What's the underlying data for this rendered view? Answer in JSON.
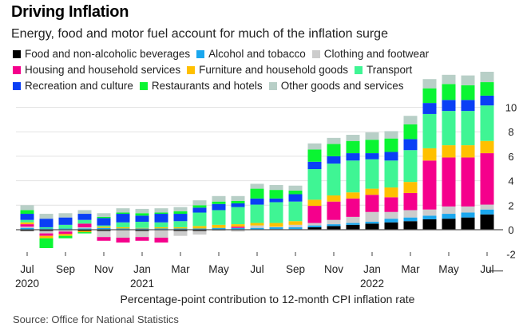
{
  "chart_data": {
    "type": "bar",
    "stacked": true,
    "title": "Driving Inflation",
    "subtitle": "Energy, food and motor fuel account for much of the inflation surge",
    "xlabel": "Percentage-point contribution to 12-month CPI inflation rate",
    "ylabel": "",
    "ylim": [
      -2,
      10
    ],
    "yticks": [
      -2,
      0,
      2,
      4,
      6,
      8,
      10
    ],
    "grid": true,
    "legend_position": "top-left",
    "source": "Source: Office for National Statistics",
    "categories": [
      "Jul 2020",
      "Aug 2020",
      "Sep 2020",
      "Oct 2020",
      "Nov 2020",
      "Dec 2020",
      "Jan 2021",
      "Feb 2021",
      "Mar 2021",
      "Apr 2021",
      "May 2021",
      "Jun 2021",
      "Jul 2021",
      "Aug 2021",
      "Sep 2021",
      "Oct 2021",
      "Nov 2021",
      "Dec 2021",
      "Jan 2022",
      "Feb 2022",
      "Mar 2022",
      "Apr 2022",
      "May 2022",
      "Jun 2022",
      "Jul 2022"
    ],
    "xtick_labels": [
      {
        "index": 0,
        "month": "Jul",
        "year": "2020"
      },
      {
        "index": 2,
        "month": "Sep",
        "year": ""
      },
      {
        "index": 4,
        "month": "Nov",
        "year": ""
      },
      {
        "index": 6,
        "month": "Jan",
        "year": "2021"
      },
      {
        "index": 8,
        "month": "Mar",
        "year": ""
      },
      {
        "index": 10,
        "month": "May",
        "year": ""
      },
      {
        "index": 12,
        "month": "Jul",
        "year": ""
      },
      {
        "index": 14,
        "month": "Sep",
        "year": ""
      },
      {
        "index": 16,
        "month": "Nov",
        "year": ""
      },
      {
        "index": 18,
        "month": "Jan",
        "year": "2022"
      },
      {
        "index": 20,
        "month": "Mar",
        "year": ""
      },
      {
        "index": 22,
        "month": "May",
        "year": ""
      },
      {
        "index": 24,
        "month": "Jul",
        "year": ""
      }
    ],
    "series": [
      {
        "name": "Food and non-alcoholic beverages",
        "color": "#000000",
        "values": [
          -0.1,
          -0.1,
          -0.05,
          -0.1,
          -0.1,
          -0.05,
          -0.1,
          -0.05,
          -0.1,
          -0.1,
          -0.05,
          -0.05,
          0.0,
          0.05,
          0.05,
          0.2,
          0.3,
          0.4,
          0.5,
          0.6,
          0.7,
          0.85,
          0.9,
          1.0,
          1.25
        ]
      },
      {
        "name": "Alcohol and tobacco",
        "color": "#1AA7EE",
        "values": [
          0.15,
          0.1,
          0.1,
          0.1,
          0.15,
          0.1,
          0.1,
          0.1,
          0.1,
          0.1,
          0.15,
          0.15,
          0.15,
          0.15,
          0.15,
          0.15,
          0.15,
          0.15,
          0.15,
          0.3,
          0.3,
          0.3,
          0.4,
          0.4,
          0.4
        ]
      },
      {
        "name": "Clothing and footwear",
        "color": "#CCCCCC",
        "values": [
          0.1,
          -0.2,
          -0.1,
          0.1,
          -0.5,
          -0.6,
          -0.5,
          -0.6,
          -0.4,
          -0.3,
          0.0,
          -0.1,
          0.2,
          0.05,
          0.2,
          0.2,
          0.35,
          0.5,
          0.8,
          0.55,
          0.6,
          0.5,
          0.6,
          0.5,
          0.4
        ]
      },
      {
        "name": "Housing and household services",
        "color": "#F5008C",
        "values": [
          0.2,
          -0.2,
          -0.2,
          0.3,
          -0.3,
          -0.4,
          -0.3,
          -0.4,
          0.0,
          0.0,
          0.0,
          0.1,
          0.0,
          0.0,
          0.0,
          1.4,
          1.5,
          1.5,
          1.4,
          1.2,
          1.4,
          4.0,
          4.0,
          4.0,
          4.2
        ]
      },
      {
        "name": "Furniture and household goods",
        "color": "#FFC000",
        "values": [
          0.15,
          -0.2,
          -0.15,
          -0.1,
          0.1,
          0.1,
          0.05,
          0.1,
          0.1,
          0.2,
          0.25,
          0.2,
          0.2,
          0.3,
          0.3,
          0.5,
          0.5,
          0.5,
          0.5,
          0.8,
          0.9,
          1.0,
          1.0,
          1.0,
          1.0
        ]
      },
      {
        "name": "Transport",
        "color": "#3FF594",
        "values": [
          0.2,
          0.1,
          0.3,
          0.3,
          0.1,
          0.4,
          0.5,
          0.4,
          0.5,
          1.1,
          1.2,
          1.4,
          1.5,
          1.7,
          1.6,
          2.5,
          2.6,
          2.6,
          2.4,
          2.2,
          2.6,
          2.8,
          2.8,
          2.8,
          2.9
        ]
      },
      {
        "name": "Recreation and culture",
        "color": "#0A3FF5",
        "values": [
          0.5,
          0.7,
          0.6,
          0.5,
          0.6,
          0.7,
          0.5,
          0.7,
          0.6,
          0.4,
          0.5,
          0.3,
          0.5,
          0.3,
          0.6,
          0.6,
          0.6,
          0.6,
          0.5,
          0.7,
          0.9,
          0.9,
          0.9,
          0.9,
          0.8
        ]
      },
      {
        "name": "Restaurants and hotels",
        "color": "#0AF532",
        "values": [
          0.3,
          -0.8,
          -0.2,
          -0.1,
          0.1,
          0.1,
          0.2,
          0.1,
          0.2,
          0.2,
          0.2,
          0.2,
          0.8,
          0.7,
          0.3,
          1.0,
          1.0,
          1.0,
          1.1,
          1.1,
          1.2,
          1.2,
          1.3,
          1.2,
          1.1
        ]
      },
      {
        "name": "Other goods and services",
        "color": "#B8CFC7",
        "values": [
          0.4,
          0.4,
          0.35,
          0.3,
          0.3,
          0.35,
          0.35,
          0.35,
          0.35,
          0.4,
          0.45,
          0.4,
          0.4,
          0.4,
          0.4,
          0.5,
          0.5,
          0.5,
          0.6,
          0.6,
          0.7,
          0.75,
          0.75,
          0.8,
          0.85
        ]
      }
    ]
  },
  "legend_rows": [
    [
      0,
      1,
      2
    ],
    [
      3,
      4,
      5
    ],
    [
      6,
      7,
      8
    ]
  ]
}
